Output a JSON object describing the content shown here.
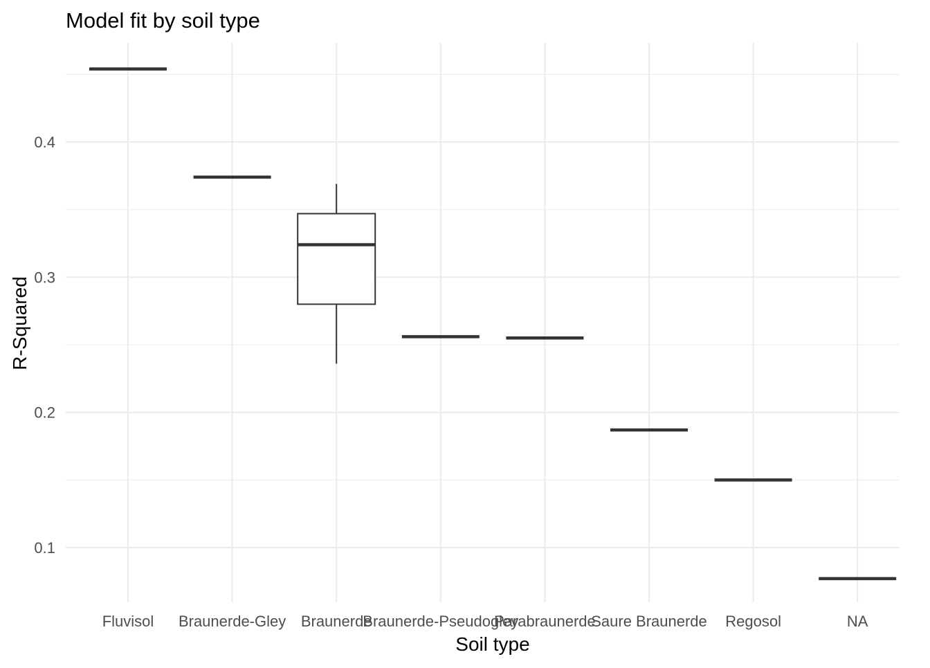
{
  "chart_data": {
    "type": "boxplot",
    "title": "Model fit by soil type",
    "xlabel": "Soil type",
    "ylabel": "R-Squared",
    "categories": [
      "Fluvisol",
      "Braunerde-Gley",
      "Braunerde",
      "Braunerde-Pseudogley",
      "Parabraunerde",
      "Saure Braunerde",
      "Regosol",
      "NA"
    ],
    "boxes": [
      {
        "category": "Fluvisol",
        "min": 0.454,
        "q1": 0.454,
        "median": 0.454,
        "q3": 0.454,
        "max": 0.454
      },
      {
        "category": "Braunerde-Gley",
        "min": 0.374,
        "q1": 0.374,
        "median": 0.374,
        "q3": 0.374,
        "max": 0.374
      },
      {
        "category": "Braunerde",
        "min": 0.236,
        "q1": 0.28,
        "median": 0.324,
        "q3": 0.347,
        "max": 0.369
      },
      {
        "category": "Braunerde-Pseudogley",
        "min": 0.256,
        "q1": 0.256,
        "median": 0.256,
        "q3": 0.256,
        "max": 0.256
      },
      {
        "category": "Parabraunerde",
        "min": 0.255,
        "q1": 0.255,
        "median": 0.255,
        "q3": 0.255,
        "max": 0.255
      },
      {
        "category": "Saure Braunerde",
        "min": 0.187,
        "q1": 0.187,
        "median": 0.187,
        "q3": 0.187,
        "max": 0.187
      },
      {
        "category": "Regosol",
        "min": 0.15,
        "q1": 0.15,
        "median": 0.15,
        "q3": 0.15,
        "max": 0.15
      },
      {
        "category": "NA",
        "min": 0.077,
        "q1": 0.077,
        "median": 0.077,
        "q3": 0.077,
        "max": 0.077
      }
    ],
    "y_ticks": [
      0.1,
      0.2,
      0.3,
      0.4
    ],
    "y_tick_labels": [
      "0.1",
      "0.2",
      "0.3",
      "0.4"
    ],
    "ylim": [
      0.062,
      0.477
    ],
    "grid": true,
    "legend": "none",
    "colors": {
      "box_outline": "#333333",
      "grid": "#ebebeb",
      "tick_label": "#4d4d4d",
      "title": "#000000"
    }
  }
}
